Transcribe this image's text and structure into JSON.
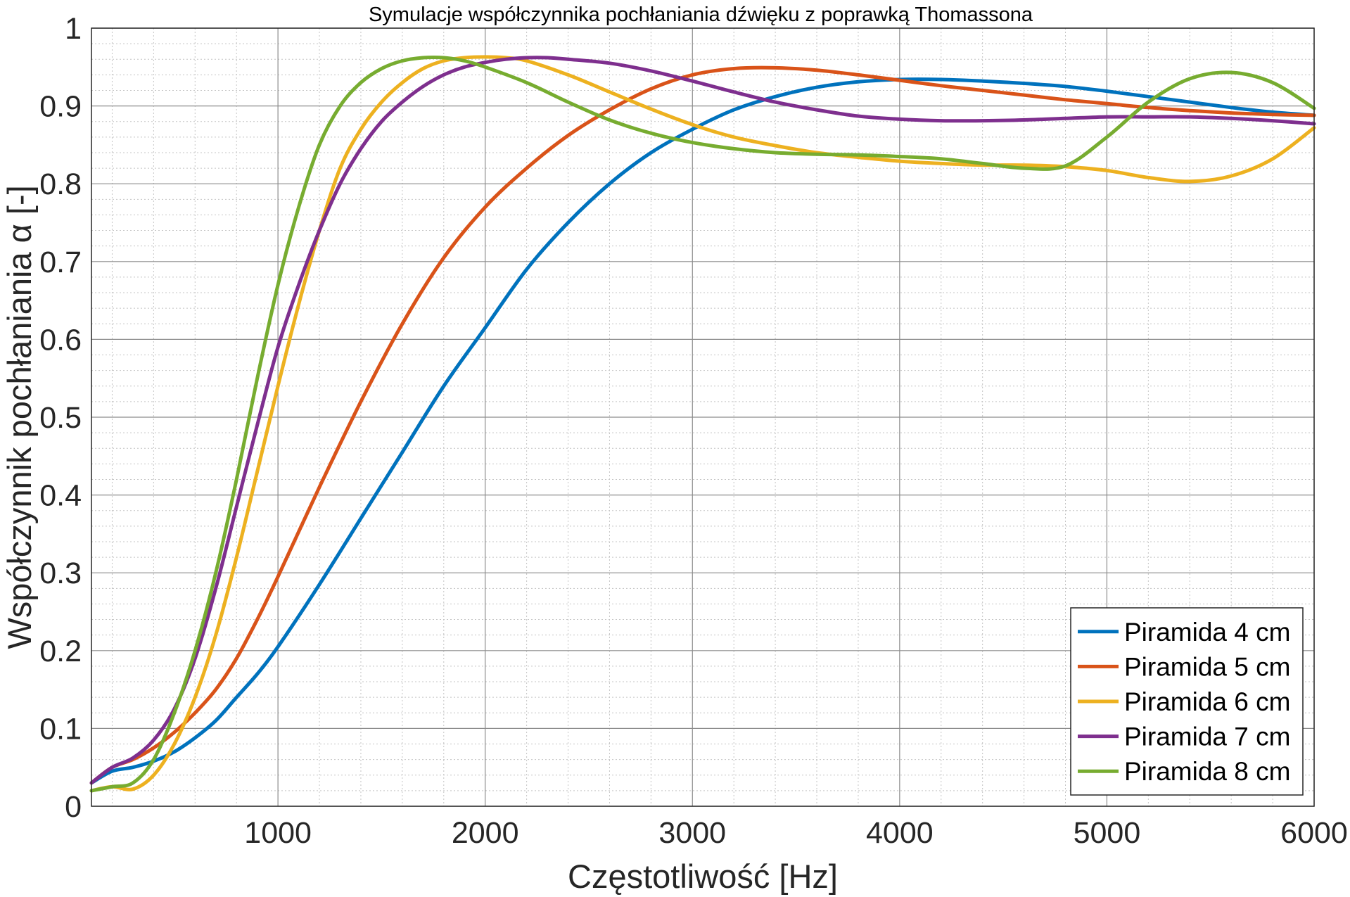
{
  "chart_data": {
    "type": "line",
    "title": "Symulacje współczynnika pochłaniania dźwięku z poprawką Thomassona",
    "xlabel": "Częstotliwość [Hz]",
    "ylabel": "Współczynnik pochłaniania α [-]",
    "xlim": [
      100,
      6000
    ],
    "ylim": [
      0,
      1
    ],
    "x_ticks": [
      1000,
      2000,
      3000,
      4000,
      5000,
      6000
    ],
    "x_tick_labels": [
      "1000",
      "2000",
      "3000",
      "4000",
      "5000",
      "6000"
    ],
    "y_ticks": [
      0,
      0.1,
      0.2,
      0.3,
      0.4,
      0.5,
      0.6,
      0.7,
      0.8,
      0.9,
      1
    ],
    "y_tick_labels": [
      "0",
      "0.1",
      "0.2",
      "0.3",
      "0.4",
      "0.5",
      "0.6",
      "0.7",
      "0.8",
      "0.9",
      "1"
    ],
    "grid": true,
    "minor_grid": true,
    "legend_position": "bottom-right",
    "series": [
      {
        "name": "Piramida 4 cm",
        "color": "#0072BD",
        "x": [
          100,
          200,
          300,
          400,
          500,
          600,
          700,
          800,
          900,
          1000,
          1200,
          1400,
          1600,
          1800,
          2000,
          2200,
          2400,
          2600,
          2800,
          3000,
          3200,
          3400,
          3600,
          3800,
          4000,
          4200,
          4400,
          4600,
          4800,
          5000,
          5200,
          5400,
          5600,
          5800,
          6000
        ],
        "y": [
          0.03,
          0.045,
          0.05,
          0.058,
          0.07,
          0.088,
          0.11,
          0.14,
          0.17,
          0.205,
          0.285,
          0.37,
          0.455,
          0.54,
          0.615,
          0.69,
          0.75,
          0.8,
          0.84,
          0.87,
          0.895,
          0.912,
          0.924,
          0.931,
          0.934,
          0.934,
          0.932,
          0.929,
          0.925,
          0.919,
          0.912,
          0.905,
          0.898,
          0.892,
          0.888
        ]
      },
      {
        "name": "Piramida 5 cm",
        "color": "#D95319",
        "x": [
          100,
          200,
          300,
          400,
          500,
          600,
          700,
          800,
          900,
          1000,
          1200,
          1400,
          1600,
          1800,
          2000,
          2200,
          2400,
          2600,
          2800,
          3000,
          3200,
          3400,
          3600,
          3800,
          4000,
          4200,
          4400,
          4600,
          4800,
          5000,
          5200,
          5400,
          5600,
          5800,
          6000
        ],
        "y": [
          0.03,
          0.05,
          0.06,
          0.075,
          0.095,
          0.12,
          0.15,
          0.19,
          0.24,
          0.295,
          0.41,
          0.52,
          0.62,
          0.705,
          0.77,
          0.82,
          0.862,
          0.895,
          0.922,
          0.94,
          0.948,
          0.949,
          0.946,
          0.94,
          0.933,
          0.926,
          0.92,
          0.914,
          0.908,
          0.903,
          0.898,
          0.894,
          0.891,
          0.889,
          0.888
        ]
      },
      {
        "name": "Piramida 6 cm",
        "color": "#EDB120",
        "x": [
          100,
          200,
          300,
          400,
          500,
          600,
          700,
          800,
          900,
          1000,
          1100,
          1200,
          1300,
          1400,
          1500,
          1600,
          1700,
          1800,
          1900,
          2000,
          2100,
          2200,
          2400,
          2600,
          2800,
          3000,
          3200,
          3400,
          3600,
          3800,
          4000,
          4200,
          4400,
          4600,
          4800,
          5000,
          5200,
          5400,
          5600,
          5800,
          6000
        ],
        "y": [
          0.02,
          0.025,
          0.022,
          0.04,
          0.08,
          0.14,
          0.22,
          0.32,
          0.43,
          0.54,
          0.645,
          0.74,
          0.82,
          0.87,
          0.905,
          0.93,
          0.948,
          0.958,
          0.962,
          0.963,
          0.962,
          0.958,
          0.94,
          0.918,
          0.896,
          0.876,
          0.86,
          0.849,
          0.84,
          0.834,
          0.829,
          0.826,
          0.824,
          0.824,
          0.822,
          0.817,
          0.808,
          0.803,
          0.81,
          0.832,
          0.872
        ]
      },
      {
        "name": "Piramida 7 cm",
        "color": "#7E2F8E",
        "x": [
          100,
          200,
          300,
          400,
          500,
          600,
          700,
          800,
          900,
          1000,
          1100,
          1200,
          1300,
          1400,
          1500,
          1600,
          1700,
          1800,
          1900,
          2000,
          2100,
          2200,
          2300,
          2400,
          2600,
          2800,
          3000,
          3200,
          3400,
          3600,
          3800,
          4000,
          4200,
          4400,
          4600,
          4800,
          5000,
          5200,
          5400,
          5600,
          5800,
          6000
        ],
        "y": [
          0.03,
          0.05,
          0.062,
          0.085,
          0.125,
          0.19,
          0.28,
          0.385,
          0.49,
          0.59,
          0.67,
          0.74,
          0.8,
          0.845,
          0.88,
          0.905,
          0.925,
          0.94,
          0.95,
          0.956,
          0.96,
          0.962,
          0.962,
          0.96,
          0.955,
          0.945,
          0.932,
          0.918,
          0.905,
          0.895,
          0.887,
          0.883,
          0.881,
          0.881,
          0.882,
          0.884,
          0.886,
          0.886,
          0.886,
          0.884,
          0.881,
          0.877
        ]
      },
      {
        "name": "Piramida 8 cm",
        "color": "#77AC30",
        "x": [
          100,
          200,
          300,
          400,
          500,
          600,
          700,
          800,
          900,
          1000,
          1100,
          1200,
          1300,
          1400,
          1500,
          1600,
          1700,
          1800,
          1900,
          2000,
          2200,
          2400,
          2600,
          2800,
          3000,
          3200,
          3400,
          3600,
          3800,
          4000,
          4200,
          4400,
          4600,
          4800,
          5000,
          5200,
          5400,
          5600,
          5800,
          6000
        ],
        "y": [
          0.02,
          0.025,
          0.03,
          0.06,
          0.12,
          0.2,
          0.3,
          0.42,
          0.55,
          0.67,
          0.77,
          0.85,
          0.9,
          0.93,
          0.948,
          0.958,
          0.962,
          0.962,
          0.958,
          0.95,
          0.93,
          0.905,
          0.882,
          0.865,
          0.853,
          0.845,
          0.84,
          0.838,
          0.837,
          0.835,
          0.832,
          0.826,
          0.82,
          0.823,
          0.86,
          0.905,
          0.935,
          0.943,
          0.93,
          0.897
        ]
      }
    ]
  }
}
